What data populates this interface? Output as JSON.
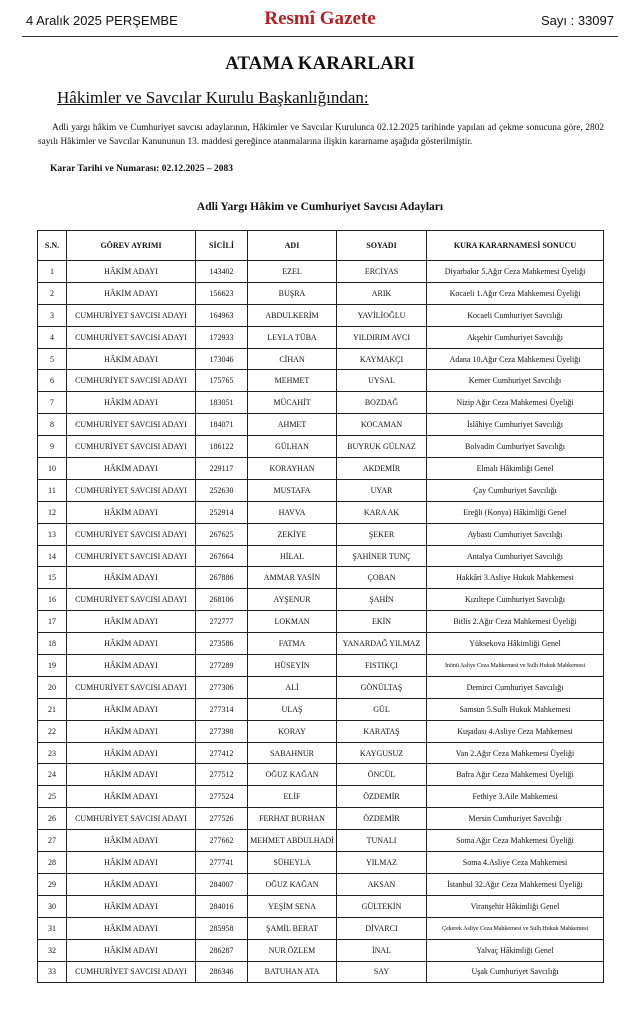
{
  "header": {
    "date": "4 Aralık 2025 PERŞEMBE",
    "title": "Resmî Gazete",
    "issue": "Sayı : 33097"
  },
  "title": "ATAMA KARARLARI",
  "subtitle": "Hâkimler ve Savcılar Kurulu Başkanlığından:",
  "paragraph": "Adli yargı hâkim ve Cumhuriyet savcısı adaylarının, Hâkimler ve Savcılar Kurulunca 02.12.2025 tarihinde yapılan ad çekme sonucuna göre, 2802 sayılı Hâkimler ve Savcılar Kanununun 13. maddesi gereğince atanmalarına ilişkin kararname aşağıda gösterilmiştir.",
  "decision": "Karar Tarihi ve Numarası: 02.12.2025 – 2083",
  "table": {
    "title": "Adli Yargı Hâkim ve Cumhuriyet Savcısı Adayları",
    "columns": [
      "S.N.",
      "GÖREV AYRIMI",
      "SİCİLİ",
      "ADI",
      "SOYADI",
      "KURA KARARNAMESİ SONUCU"
    ],
    "rows": [
      [
        1,
        "HÂKİM ADAYI",
        143402,
        "EZEL",
        "ERCİYAS",
        "Diyarbakır 5.Ağır Ceza Mahkemesi Üyeliği"
      ],
      [
        2,
        "HÂKİM ADAYI",
        156623,
        "BUŞRA",
        "ARIK",
        "Kocaeli 1.Ağır Ceza Mahkemesi Üyeliği"
      ],
      [
        3,
        "CUMHURİYET SAVCISI ADAYI",
        164963,
        "ABDULKERİM",
        "YAVİLİOĞLU",
        "Kocaeli Cumhuriyet Savcılığı"
      ],
      [
        4,
        "CUMHURİYET SAVCISI ADAYI",
        172933,
        "LEYLA TÜBA",
        "YILDIRIM AVCI",
        "Akşehir Cumhuriyet Savcılığı"
      ],
      [
        5,
        "HÂKİM ADAYI",
        173046,
        "CİHAN",
        "KAYMAKÇI",
        "Adana 10.Ağır Ceza Mahkemesi Üyeliği"
      ],
      [
        6,
        "CUMHURİYET SAVCISI ADAYI",
        175765,
        "MEHMET",
        "UYSAL",
        "Kemer Cumhuriyet Savcılığı"
      ],
      [
        7,
        "HÂKİM ADAYI",
        183051,
        "MÜCAHİT",
        "BOZDAĞ",
        "Nizip Ağır Ceza Mahkemesi Üyeliği"
      ],
      [
        8,
        "CUMHURİYET SAVCISI ADAYI",
        184071,
        "AHMET",
        "KOCAMAN",
        "İslâhiye Cumhuriyet Savcılığı"
      ],
      [
        9,
        "CUMHURİYET SAVCISI ADAYI",
        186122,
        "GÜLHAN",
        "BUYRUK GÜLNAZ",
        "Bolvadin Cumhuriyet Savcılığı"
      ],
      [
        10,
        "HÂKİM ADAYI",
        229117,
        "KORAYHAN",
        "AKDEMİR",
        "Elmalı Hâkimliği Genel"
      ],
      [
        11,
        "CUMHURİYET SAVCISI ADAYI",
        252630,
        "MUSTAFA",
        "UYAR",
        "Çay Cumhuriyet Savcılığı"
      ],
      [
        12,
        "HÂKİM ADAYI",
        252914,
        "HAVVA",
        "KARA AK",
        "Ereğli (Konya) Hâkimliği Genel"
      ],
      [
        13,
        "CUMHURİYET SAVCISI ADAYI",
        267625,
        "ZEKİYE",
        "ŞEKER",
        "Aybastı Cumhuriyet Savcılığı"
      ],
      [
        14,
        "CUMHURİYET SAVCISI ADAYI",
        267664,
        "HİLAL",
        "ŞAHİNER TUNÇ",
        "Antalya Cumhuriyet Savcılığı"
      ],
      [
        15,
        "HÂKİM ADAYI",
        267886,
        "AMMAR YASİN",
        "ÇOBAN",
        "Hakkâri 3.Asliye Hukuk Mahkemesi"
      ],
      [
        16,
        "CUMHURİYET SAVCISI ADAYI",
        268106,
        "AYŞENUR",
        "ŞAHİN",
        "Kızıltepe Cumhuriyet Savcılığı"
      ],
      [
        17,
        "HÂKİM ADAYI",
        272777,
        "LOKMAN",
        "EKİN",
        "Bitlis 2.Ağır Ceza Mahkemesi Üyeliği"
      ],
      [
        18,
        "HÂKİM ADAYI",
        273586,
        "FATMA",
        "YANARDAĞ YILMAZ",
        "Yüksekova Hâkimliği Genel"
      ],
      [
        19,
        "HÂKİM ADAYI",
        277289,
        "HÜSEYİN",
        "FISTIKÇI",
        "İnönü Asliye Ceza Mahkemesi ve Sulh Hukuk Mahkemesi"
      ],
      [
        20,
        "CUMHURİYET SAVCISI ADAYI",
        277306,
        "ALİ",
        "GÖNÜLTAŞ",
        "Demirci Cumhuriyet Savcılığı"
      ],
      [
        21,
        "HÂKİM ADAYI",
        277314,
        "ULAŞ",
        "GÜL",
        "Samsun 5.Sulh Hukuk Mahkemesi"
      ],
      [
        22,
        "HÂKİM ADAYI",
        277398,
        "KORAY",
        "KARATAŞ",
        "Kuşadası 4.Asliye Ceza Mahkemesi"
      ],
      [
        23,
        "HÂKİM ADAYI",
        277412,
        "SABAHNUR",
        "KAYGUSUZ",
        "Van 2.Ağır Ceza Mahkemesi Üyeliği"
      ],
      [
        24,
        "HÂKİM ADAYI",
        277512,
        "OĞUZ KAĞAN",
        "ÖNCÜL",
        "Bafra Ağır Ceza Mahkemesi Üyeliği"
      ],
      [
        25,
        "HÂKİM ADAYI",
        277524,
        "ELİF",
        "ÖZDEMİR",
        "Fethiye 3.Aile Mahkemesi"
      ],
      [
        26,
        "CUMHURİYET SAVCISI ADAYI",
        277526,
        "FERHAT BURHAN",
        "ÖZDEMİR",
        "Mersin Cumhuriyet Savcılığı"
      ],
      [
        27,
        "HÂKİM ADAYI",
        277662,
        "MEHMET ABDULHADİ",
        "TUNALI",
        "Soma Ağır Ceza Mahkemesi Üyeliği"
      ],
      [
        28,
        "HÂKİM ADAYI",
        277741,
        "SÜHEYLA",
        "YILMAZ",
        "Soma 4.Asliye Ceza Mahkemesi"
      ],
      [
        29,
        "HÂKİM ADAYI",
        284007,
        "OĞUZ KAĞAN",
        "AKSAN",
        "İstanbul 32.Ağır Ceza Mahkemesi Üyeliği"
      ],
      [
        30,
        "HÂKİM ADAYI",
        284016,
        "YEŞİM SENA",
        "GÜLTEKİN",
        "Viranşehir Hâkimliği Genel"
      ],
      [
        31,
        "HÂKİM ADAYI",
        285958,
        "ŞAMİL BERAT",
        "DİVARCI",
        "Çekerek Asliye Ceza Mahkemesi ve Sulh Hukuk Mahkemesi"
      ],
      [
        32,
        "HÂKİM ADAYI",
        286287,
        "NUR ÖZLEM",
        "İNAL",
        "Yalvaç Hâkimliği Genel"
      ],
      [
        33,
        "CUMHURİYET SAVCISI ADAYI",
        286346,
        "BATUHAN ATA",
        "SAY",
        "Uşak Cumhuriyet Savcılığı"
      ]
    ]
  }
}
